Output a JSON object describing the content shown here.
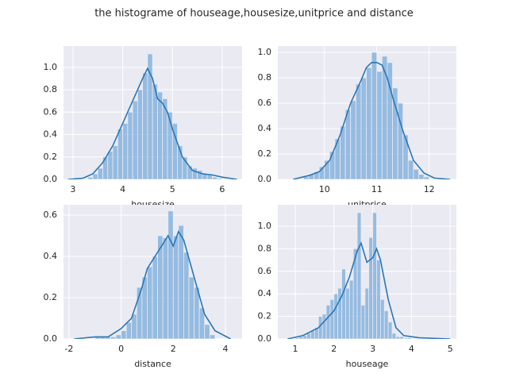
{
  "title": "the histograme of houseage,housesize,unitprice and distance",
  "chart_data": [
    {
      "type": "histogram",
      "xlabel": "housesize",
      "color": "#5b9bd5",
      "background": "#eaeaf2",
      "grid": true,
      "bins": [
        3.3,
        3.4,
        3.5,
        3.6,
        3.7,
        3.8,
        3.9,
        4.0,
        4.1,
        4.2,
        4.3,
        4.4,
        4.5,
        4.6,
        4.7,
        4.8,
        4.9,
        5.0,
        5.1,
        5.2,
        5.3,
        5.4,
        5.5,
        5.6,
        5.7,
        5.8,
        5.9,
        6.0
      ],
      "values": [
        0.02,
        0.05,
        0.1,
        0.2,
        0.25,
        0.3,
        0.45,
        0.5,
        0.6,
        0.7,
        0.8,
        0.95,
        1.12,
        0.85,
        0.78,
        0.72,
        0.6,
        0.5,
        0.3,
        0.2,
        0.12,
        0.1,
        0.08,
        0.05,
        0.04,
        0.02,
        0.01
      ],
      "kde": {
        "color": "#2a77b4",
        "x": [
          2.9,
          3.2,
          3.4,
          3.6,
          3.8,
          4.0,
          4.2,
          4.4,
          4.5,
          4.6,
          4.7,
          4.8,
          4.9,
          5.0,
          5.2,
          5.4,
          5.6,
          5.8,
          6.0,
          6.3
        ],
        "y": [
          0,
          0.01,
          0.05,
          0.15,
          0.3,
          0.5,
          0.7,
          0.9,
          0.99,
          0.9,
          0.72,
          0.68,
          0.6,
          0.45,
          0.2,
          0.08,
          0.05,
          0.04,
          0.02,
          0
        ]
      },
      "xlim": [
        2.81,
        6.4
      ],
      "ylim": [
        0,
        1.19
      ],
      "xticks": [
        3,
        4,
        5,
        6
      ],
      "yticks": [
        {
          "value": 0,
          "label": "0.0"
        },
        {
          "value": 0.2,
          "label": "0.2"
        },
        {
          "value": 0.4,
          "label": "0.4"
        },
        {
          "value": 0.6,
          "label": "0.6"
        },
        {
          "value": 0.8,
          "label": "0.8"
        },
        {
          "value": 1,
          "label": "1.0"
        }
      ]
    },
    {
      "type": "histogram",
      "xlabel": "unitprice",
      "color": "#5b9bd5",
      "background": "#eaeaf2",
      "grid": true,
      "bins": [
        9.6,
        9.7,
        9.8,
        9.9,
        10.0,
        10.1,
        10.2,
        10.3,
        10.4,
        10.5,
        10.6,
        10.7,
        10.8,
        10.9,
        11.0,
        11.1,
        11.2,
        11.3,
        11.4,
        11.5,
        11.6,
        11.7,
        11.8,
        11.9,
        12.0
      ],
      "values": [
        0.02,
        0.04,
        0.06,
        0.1,
        0.15,
        0.22,
        0.32,
        0.42,
        0.55,
        0.62,
        0.75,
        0.8,
        0.88,
        1.0,
        0.85,
        0.97,
        0.92,
        0.72,
        0.6,
        0.35,
        0.15,
        0.08,
        0.04,
        0.02
      ],
      "kde": {
        "color": "#2a77b4",
        "x": [
          9.4,
          9.7,
          9.9,
          10.1,
          10.3,
          10.5,
          10.7,
          10.8,
          10.9,
          11.0,
          11.1,
          11.2,
          11.3,
          11.5,
          11.7,
          11.9,
          12.1,
          12.4
        ],
        "y": [
          0,
          0.03,
          0.06,
          0.15,
          0.35,
          0.6,
          0.78,
          0.88,
          0.92,
          0.92,
          0.9,
          0.8,
          0.65,
          0.38,
          0.15,
          0.05,
          0.01,
          0
        ]
      },
      "xlim": [
        9.11,
        12.52
      ],
      "ylim": [
        0,
        1.05
      ],
      "xticks": [
        10,
        11,
        12
      ],
      "yticks": [
        {
          "value": 0,
          "label": "0.0"
        },
        {
          "value": 0.2,
          "label": "0.2"
        },
        {
          "value": 0.4,
          "label": "0.4"
        },
        {
          "value": 0.6,
          "label": "0.6"
        },
        {
          "value": 0.8,
          "label": "0.8"
        },
        {
          "value": 1,
          "label": "1.0"
        }
      ]
    },
    {
      "type": "histogram",
      "xlabel": "distance",
      "color": "#5b9bd5",
      "background": "#eaeaf2",
      "grid": true,
      "bins": [
        -1.0,
        -0.8,
        -0.6,
        -0.4,
        -0.2,
        0.0,
        0.2,
        0.4,
        0.6,
        0.8,
        1.0,
        1.2,
        1.4,
        1.6,
        1.8,
        2.0,
        2.2,
        2.4,
        2.6,
        2.8,
        3.0,
        3.2,
        3.4,
        3.6
      ],
      "values": [
        0.01,
        0.01,
        0.01,
        0.01,
        0.02,
        0.04,
        0.08,
        0.12,
        0.25,
        0.3,
        0.35,
        0.4,
        0.5,
        0.49,
        0.62,
        0.5,
        0.55,
        0.42,
        0.3,
        0.25,
        0.15,
        0.07,
        0.02
      ],
      "kde": {
        "color": "#2a77b4",
        "x": [
          -1.8,
          -1.0,
          -0.5,
          0,
          0.4,
          0.8,
          1.0,
          1.4,
          1.8,
          2.0,
          2.2,
          2.4,
          2.8,
          3.2,
          3.6,
          4.2
        ],
        "y": [
          0,
          0.01,
          0.01,
          0.05,
          0.1,
          0.25,
          0.34,
          0.42,
          0.5,
          0.45,
          0.52,
          0.48,
          0.3,
          0.12,
          0.04,
          0
        ]
      },
      "xlim": [
        -2.21,
        4.64
      ],
      "ylim": [
        0,
        0.65
      ],
      "xticks": [
        -2,
        0,
        2,
        4
      ],
      "yticks": [
        {
          "value": 0,
          "label": "0.0"
        },
        {
          "value": 0.2,
          "label": "0.2"
        },
        {
          "value": 0.4,
          "label": "0.4"
        },
        {
          "value": 0.6,
          "label": "0.6"
        }
      ]
    },
    {
      "type": "histogram",
      "xlabel": "houseage",
      "color": "#5b9bd5",
      "background": "#eaeaf2",
      "grid": true,
      "bins": [
        1.0,
        1.1,
        1.2,
        1.3,
        1.4,
        1.5,
        1.6,
        1.7,
        1.8,
        1.9,
        2.0,
        2.1,
        2.2,
        2.3,
        2.4,
        2.5,
        2.6,
        2.7,
        2.8,
        2.9,
        3.0,
        3.1,
        3.2,
        3.3,
        3.4,
        3.5,
        3.6,
        3.7,
        3.8,
        3.9,
        4.0
      ],
      "values": [
        0.01,
        0.02,
        0.03,
        0.05,
        0.07,
        0.1,
        0.2,
        0.22,
        0.3,
        0.35,
        0.4,
        0.45,
        0.62,
        0.45,
        0.52,
        0.8,
        1.12,
        0.3,
        0.45,
        0.9,
        1.12,
        0.7,
        0.35,
        0.25,
        0.15,
        0.05,
        0.02,
        0.02,
        0.01,
        0.01
      ],
      "kde": {
        "color": "#2a77b4",
        "x": [
          0.8,
          1.2,
          1.6,
          2.0,
          2.2,
          2.4,
          2.6,
          2.7,
          2.85,
          3.0,
          3.1,
          3.2,
          3.4,
          3.6,
          3.8,
          4.2,
          5.0
        ],
        "y": [
          0,
          0.03,
          0.1,
          0.25,
          0.38,
          0.55,
          0.78,
          0.85,
          0.68,
          0.72,
          0.8,
          0.7,
          0.35,
          0.1,
          0.03,
          0.01,
          0
        ]
      },
      "xlim": [
        0.55,
        5.16
      ],
      "ylim": [
        0,
        1.19
      ],
      "xticks": [
        1,
        2,
        3,
        4,
        5
      ],
      "yticks": [
        {
          "value": 0,
          "label": "0.0"
        },
        {
          "value": 0.2,
          "label": "0.2"
        },
        {
          "value": 0.4,
          "label": "0.4"
        },
        {
          "value": 0.6,
          "label": "0.6"
        },
        {
          "value": 0.8,
          "label": "0.8"
        },
        {
          "value": 1,
          "label": "1.0"
        }
      ]
    }
  ]
}
